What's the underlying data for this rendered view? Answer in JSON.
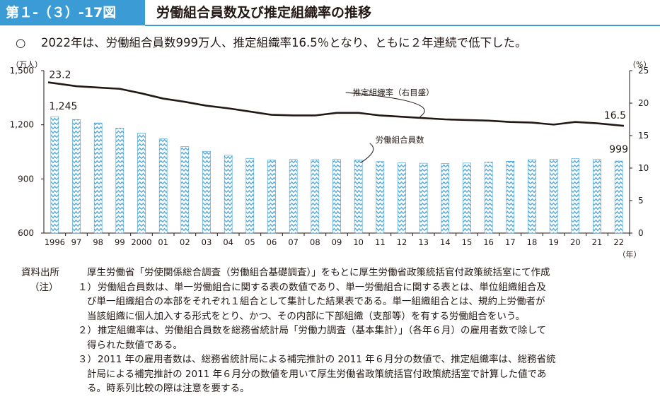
{
  "figure": {
    "number": "第１-（３）-17図",
    "title": "労働組合員数及び推定組織率の推移"
  },
  "summary": {
    "mark": "○",
    "text": "2022年は、労働組合員数999万人、推定組織率16.5％となり、ともに２年連続で低下した。"
  },
  "colors": {
    "accent": "#3a9bd5",
    "bar_fill": "#5aaee0",
    "line": "#231815"
  },
  "chart_data": {
    "type": "bar",
    "categories": [
      "1996",
      "97",
      "98",
      "99",
      "2000",
      "01",
      "02",
      "03",
      "04",
      "05",
      "06",
      "07",
      "08",
      "09",
      "10",
      "11",
      "12",
      "13",
      "14",
      "15",
      "16",
      "17",
      "18",
      "19",
      "20",
      "21",
      "22"
    ],
    "x_unit": "（年）",
    "series": [
      {
        "name": "労働組合員数",
        "axis": "left",
        "type": "bar",
        "values": [
          1245,
          1229,
          1210,
          1182,
          1154,
          1122,
          1080,
          1053,
          1031,
          1014,
          1004,
          1008,
          1007,
          1008,
          1005,
          996,
          989,
          987,
          985,
          988,
          994,
          998,
          1007,
          1009,
          1012,
          1008,
          999
        ]
      },
      {
        "name": "推定組織率（右目盛）",
        "axis": "right",
        "type": "line",
        "values": [
          23.2,
          22.6,
          22.4,
          22.2,
          21.5,
          20.7,
          20.2,
          19.6,
          19.2,
          18.7,
          18.2,
          18.1,
          18.1,
          18.5,
          18.5,
          18.1,
          17.9,
          17.7,
          17.5,
          17.4,
          17.3,
          17.1,
          17.0,
          16.7,
          17.1,
          16.9,
          16.5
        ]
      }
    ],
    "left_axis": {
      "unit": "（万人）",
      "min": 600,
      "max": 1500,
      "ticks": [
        "600",
        "900",
        "1,200",
        "1,500"
      ]
    },
    "right_axis": {
      "unit": "（%）",
      "min": 0,
      "max": 25,
      "ticks": [
        "0",
        "5",
        "10",
        "15",
        "20",
        "25"
      ]
    },
    "data_labels": {
      "first_bar": "1,245",
      "last_bar": "999",
      "first_line": "23.2",
      "last_line": "16.5"
    },
    "annotations": {
      "line_label": "推定組織率（右目盛）",
      "bar_label": "労働組合員数"
    }
  },
  "notes": {
    "source_label": "資料出所",
    "source_text": "厚生労働省「労使関係総合調査（労働組合基礎調査）」をもとに厚生労働省政策統括官付政策統括室にて作成",
    "note_label": "（注）",
    "items": [
      {
        "num": "１）",
        "lines": [
          "労働組合員数は、単一労働組合に関する表の数値であり、単一労働組合に関する表とは、単位組織組合及",
          "び単一組織組合の本部をそれぞれ１組合として集計した結果表である。単一組織組合とは、規約上労働者が",
          "当該組織に個人加入する形式をとり、かつ、その内部に下部組織（支部等）を有する労働組合をいう。"
        ]
      },
      {
        "num": "２）",
        "lines": [
          "推定組織率は、労働組合員数を総務省統計局「労働力調査（基本集計）」（各年６月）の雇用者数で除して",
          "得られた数値である。"
        ]
      },
      {
        "num": "３）",
        "lines": [
          "2011 年の雇用者数は、総務省統計局による補完推計の 2011 年６月分の数値で、推定組織率は、総務省統",
          "計局による補完推計の 2011 年６月分の数値を用いて厚生労働省政策統括官付政策統括室で計算した値であ",
          "る。時系列比較の際は注意を要する。"
        ]
      }
    ]
  }
}
